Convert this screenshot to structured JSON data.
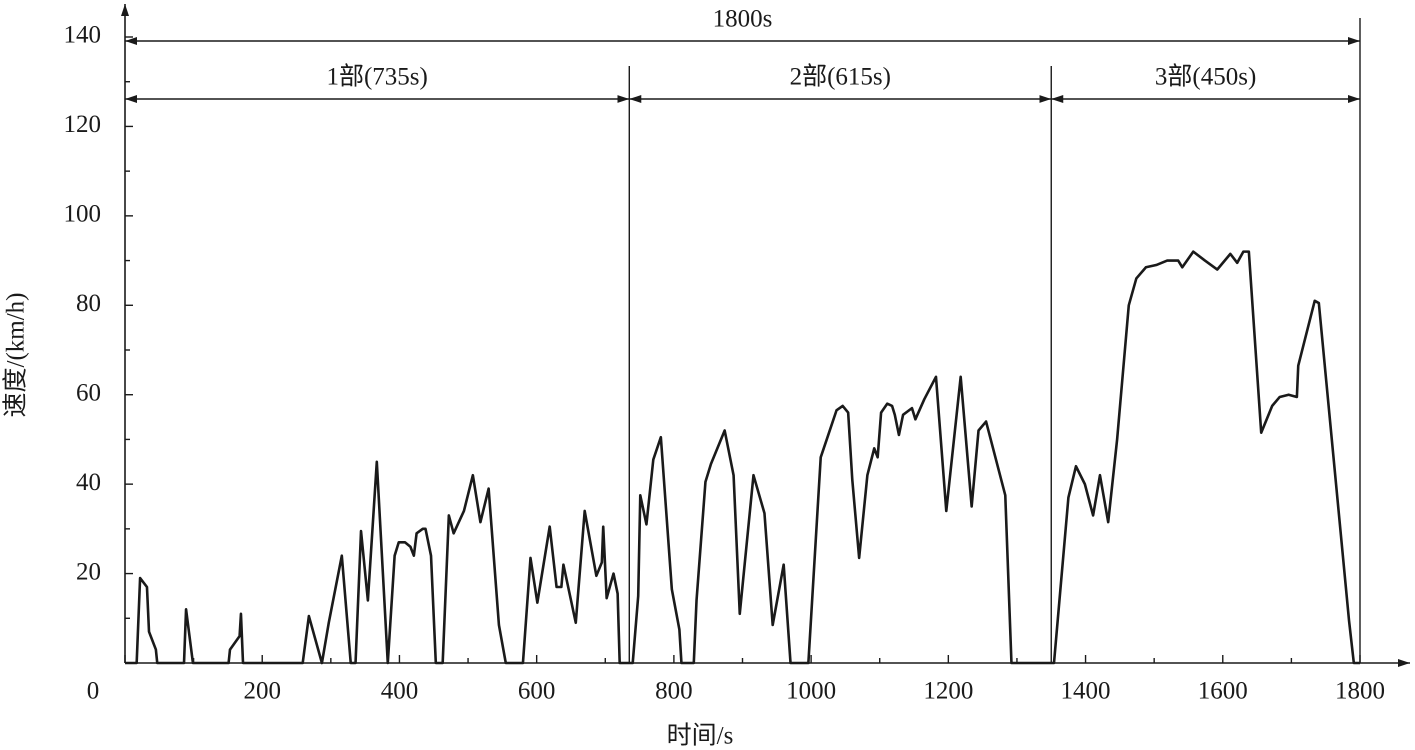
{
  "chart_data": {
    "type": "line",
    "x_label": "时间/s",
    "y_label": "速度/(km/h)",
    "xlim": [
      0,
      1800
    ],
    "ylim": [
      0,
      140
    ],
    "xticks": [
      0,
      200,
      400,
      600,
      800,
      1000,
      1200,
      1400,
      1600,
      1800
    ],
    "yticks": [
      20,
      40,
      60,
      80,
      100,
      120,
      140
    ],
    "total_span": {
      "label": "1800s",
      "start": 0,
      "end": 1800
    },
    "phases": [
      {
        "label": "1部(735s)",
        "start": 0,
        "end": 735
      },
      {
        "label": "2部(615s)",
        "start": 735,
        "end": 1350
      },
      {
        "label": "3部(450s)",
        "start": 1350,
        "end": 1800
      }
    ],
    "series": [
      {
        "color": "#1a1a1a",
        "x": [
          0,
          17,
          22,
          32,
          35,
          45,
          47,
          86,
          89,
          99,
          151,
          153,
          167,
          169,
          172,
          259,
          268,
          287,
          297,
          316,
          329,
          336,
          344,
          354,
          367,
          383,
          393,
          399,
          408,
          416,
          421,
          425,
          434,
          438,
          446,
          453,
          463,
          472,
          479,
          494,
          507,
          518,
          530,
          545,
          555,
          580,
          591,
          601,
          619,
          629,
          636,
          639,
          657,
          670,
          687,
          695,
          697,
          702,
          712,
          718,
          721,
          740,
          748,
          751,
          760,
          770,
          781,
          797,
          808,
          811,
          829,
          833,
          846,
          854,
          874,
          887,
          896,
          916,
          932,
          944,
          960,
          970,
          996,
          1014,
          1025,
          1037,
          1046,
          1054,
          1060,
          1070,
          1082,
          1092,
          1097,
          1102,
          1111,
          1118,
          1122,
          1128,
          1134,
          1147,
          1152,
          1165,
          1182,
          1197,
          1218,
          1234,
          1244,
          1255,
          1283,
          1292,
          1354,
          1375,
          1386,
          1399,
          1411,
          1421,
          1433,
          1446,
          1463,
          1474,
          1488,
          1503,
          1519,
          1535,
          1541,
          1557,
          1574,
          1592,
          1611,
          1621,
          1630,
          1638,
          1656,
          1672,
          1683,
          1696,
          1708,
          1710,
          1734,
          1740,
          1784,
          1791,
          1800
        ],
        "values": [
          0,
          0,
          19,
          17,
          7,
          3,
          0,
          0,
          12,
          0,
          0,
          3,
          6,
          11,
          0,
          0,
          10.5,
          0,
          9,
          24,
          0,
          0,
          29.5,
          14,
          45,
          0,
          24,
          27,
          27,
          26,
          24,
          29,
          30,
          30,
          24,
          0,
          0,
          33,
          29,
          34,
          42,
          31.5,
          39,
          8.5,
          0,
          0,
          23.5,
          13.5,
          30.5,
          17,
          17,
          22,
          9,
          34,
          19.5,
          22.5,
          30.5,
          14.5,
          20,
          15.5,
          0,
          0,
          15,
          37.5,
          31,
          45.5,
          50.5,
          16.5,
          7.5,
          0,
          0,
          14,
          40.5,
          44.5,
          52,
          42,
          11,
          42,
          33.5,
          8.5,
          22,
          0,
          0,
          46,
          51,
          56.5,
          57.5,
          56,
          41,
          23.5,
          42,
          48,
          46,
          56,
          58,
          57.5,
          55.5,
          51,
          55.5,
          57,
          54.5,
          59,
          64,
          34,
          64,
          35,
          52,
          54,
          37.5,
          0,
          0,
          37,
          44,
          40,
          33,
          42,
          31.5,
          50,
          80,
          86,
          88.5,
          89,
          90,
          90,
          88.5,
          92,
          90,
          88,
          91.5,
          89.5,
          92,
          92,
          51.5,
          57.5,
          59.5,
          60,
          59.5,
          66.5,
          81,
          80.5,
          9.5,
          0,
          0
        ]
      }
    ]
  }
}
